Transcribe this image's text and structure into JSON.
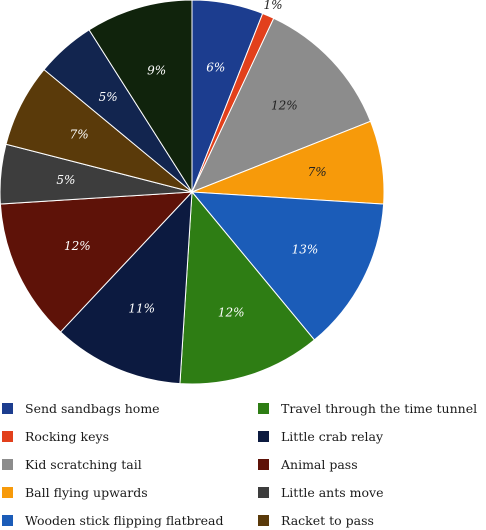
{
  "chart_data": {
    "type": "pie",
    "start_angle_deg": 0,
    "direction": "clockwise",
    "slices": [
      {
        "label": "Send sandbags home",
        "value": 6,
        "display": "6%",
        "color": "#1c3d8f",
        "label_color": "#ffffff"
      },
      {
        "label": "Rocking keys",
        "value": 1,
        "display": "1%",
        "color": "#e2401c",
        "label_color": "#222222"
      },
      {
        "label": "Kid scratching tail",
        "value": 12,
        "display": "12%",
        "color": "#8c8c8c",
        "label_color": "#222222"
      },
      {
        "label": "Ball flying upwards",
        "value": 7,
        "display": "7%",
        "color": "#f79a0a",
        "label_color": "#222222"
      },
      {
        "label": "Wooden stick flipping flatbread",
        "value": 13,
        "display": "13%",
        "color": "#1b5cb8",
        "label_color": "#ffffff"
      },
      {
        "label": "Travel through the time tunnel",
        "value": 12,
        "display": "12%",
        "color": "#2e7d14",
        "label_color": "#ffffff"
      },
      {
        "label": "Little crab relay",
        "value": 11,
        "display": "11%",
        "color": "#0c1a40",
        "label_color": "#ffffff"
      },
      {
        "label": "Animal pass",
        "value": 12,
        "display": "12%",
        "color": "#5e1208",
        "label_color": "#ffffff"
      },
      {
        "label": "Little ants move",
        "value": 5,
        "display": "5%",
        "color": "#3d3d3d",
        "label_color": "#ffffff"
      },
      {
        "label": "Racket to pass",
        "value": 7,
        "display": "7%",
        "color": "#5a3a0a",
        "label_color": "#ffffff"
      },
      {
        "label": "",
        "value": 5,
        "display": "5%",
        "color": "#12254f",
        "label_color": "#ffffff"
      },
      {
        "label": "",
        "value": 9,
        "display": "9%",
        "color": "#10230c",
        "label_color": "#ffffff"
      }
    ],
    "legend_placement": "bottom",
    "legend_columns": 2
  }
}
